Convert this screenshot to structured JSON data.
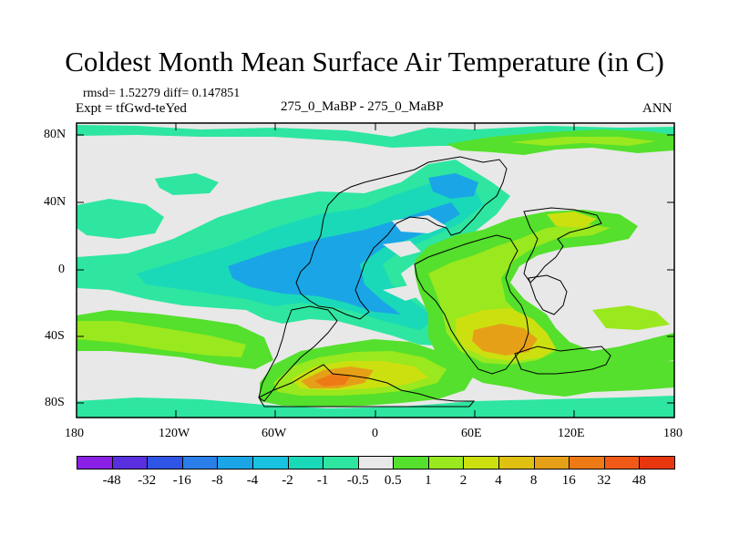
{
  "title": "Coldest Month Mean Surface Air Temperature (in C)",
  "stats": "rmsd= 1.52279 diff= 0.147851",
  "experiment": "Expt = tfGwd-teYed",
  "comparison": "275_0_MaBP - 275_0_MaBP",
  "period": "ANN",
  "y_axis": [
    "80N",
    "40N",
    "0",
    "40S",
    "80S"
  ],
  "x_axis": [
    "180",
    "120W",
    "60W",
    "0",
    "60E",
    "120E",
    "180"
  ],
  "legend": {
    "colors": [
      "#8a1fe6",
      "#5a2fe0",
      "#2f55e6",
      "#2a7ee8",
      "#1aa6e6",
      "#18c2e0",
      "#1ad9b8",
      "#2ee6a0",
      "#e8e8e8",
      "#54e02c",
      "#9ae81e",
      "#cce010",
      "#e0c010",
      "#e6a018",
      "#ee7a16",
      "#f05a16",
      "#e8360e"
    ],
    "labels": [
      "-48",
      "-32",
      "-16",
      "-8",
      "-4",
      "-2",
      "-1",
      "-0.5",
      "0.5",
      "1",
      "2",
      "4",
      "8",
      "16",
      "32",
      "48"
    ]
  },
  "colors": {
    "background": "#e8e8e8",
    "cold_light": "#2ee6a0",
    "cold_mid": "#1ad9b8",
    "cold_deep": "#1aa6e6",
    "warm_light": "#54e02c",
    "warm_mid": "#9ae81e",
    "warm_strong": "#cce010",
    "warm_hot": "#e6a018",
    "warm_peak": "#ee7a16"
  }
}
